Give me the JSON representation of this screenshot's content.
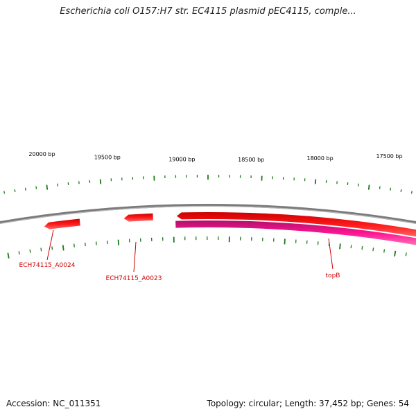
{
  "title": "Escherichia coli O157:H7 str. EC4115 plasmid pEC4115, comple...",
  "footer": {
    "accession": "Accession: NC_011351",
    "summary": "Topology: circular; Length: 37,452 bp; Genes: 54"
  },
  "colors": {
    "backbone": "#808080",
    "forward_gene": "#ff0000",
    "reverse_gene": "#ff1493",
    "tick": "#1a7a1a",
    "gene_label": "#cc0000"
  },
  "scale_labels": [
    "20000 bp",
    "19500 bp",
    "19000 bp",
    "18500 bp",
    "18000 bp",
    "17500 bp"
  ],
  "genes": [
    {
      "label": "ECH74115_A0024",
      "strand": "forward"
    },
    {
      "label": "ECH74115_A0023",
      "strand": "forward"
    },
    {
      "label": "",
      "strand": "forward"
    },
    {
      "label": "topB",
      "strand": "reverse"
    }
  ]
}
